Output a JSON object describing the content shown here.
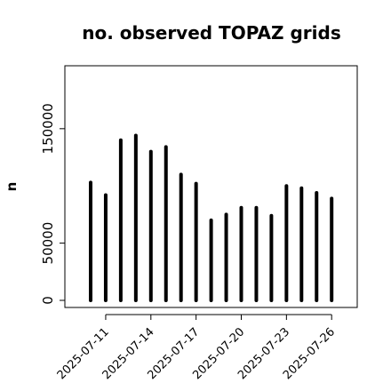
{
  "chart_data": {
    "type": "bar",
    "title": "no. observed TOPAZ grids",
    "ylabel": "n",
    "xlabel": "",
    "x": [
      "2025-07-10",
      "2025-07-11",
      "2025-07-12",
      "2025-07-13",
      "2025-07-14",
      "2025-07-15",
      "2025-07-16",
      "2025-07-17",
      "2025-07-18",
      "2025-07-19",
      "2025-07-20",
      "2025-07-21",
      "2025-07-22",
      "2025-07-23",
      "2025-07-24",
      "2025-07-25",
      "2025-07-26"
    ],
    "values": [
      103000,
      92000,
      140000,
      144000,
      130000,
      134000,
      110000,
      102000,
      70000,
      75000,
      81000,
      81000,
      74000,
      100000,
      98000,
      94000,
      89000
    ],
    "ylim": [
      0,
      205000
    ],
    "yticks": [
      "0",
      "50000",
      "150000"
    ],
    "ytick_values": [
      0,
      50000,
      150000
    ],
    "xtick_labels": [
      "2025-07-11",
      "2025-07-14",
      "2025-07-17",
      "2025-07-20",
      "2025-07-23",
      "2025-07-26"
    ],
    "xtick_highlight": "2025-07-17",
    "bar_color": "#000000",
    "highlight_color": "#228b22",
    "grid": false
  }
}
